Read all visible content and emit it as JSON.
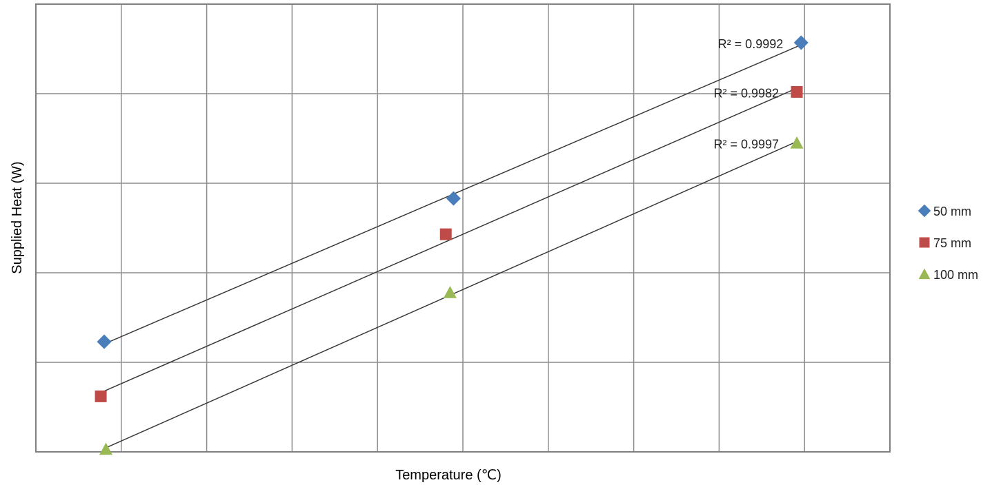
{
  "chart_data": {
    "type": "scatter",
    "title": "",
    "xlabel": "Temperature (℃)",
    "ylabel": "Supplied Heat (W)",
    "xlim": [
      0,
      10
    ],
    "ylim": [
      0,
      5
    ],
    "grid": true,
    "x_tick_labels_shown": false,
    "y_tick_labels_shown": false,
    "legend_position": "right",
    "series": [
      {
        "name": "50 mm",
        "marker": "diamond",
        "color": "#4a7ebb",
        "x": [
          0.8,
          4.89,
          8.96
        ],
        "y": [
          1.23,
          2.83,
          4.57
        ],
        "trendline": {
          "type": "linear",
          "r_squared_label": "R² = 0.9992"
        }
      },
      {
        "name": "75 mm",
        "marker": "square",
        "color": "#be4b48",
        "x": [
          0.76,
          4.8,
          8.91
        ],
        "y": [
          0.62,
          2.43,
          4.02
        ],
        "trendline": {
          "type": "linear",
          "r_squared_label": "R² = 0.9982"
        }
      },
      {
        "name": "100 mm",
        "marker": "triangle",
        "color": "#98b954",
        "x": [
          0.82,
          4.85,
          8.91
        ],
        "y": [
          0.03,
          1.78,
          3.45
        ],
        "trendline": {
          "type": "linear",
          "r_squared_label": "R² = 0.9997"
        }
      }
    ]
  }
}
